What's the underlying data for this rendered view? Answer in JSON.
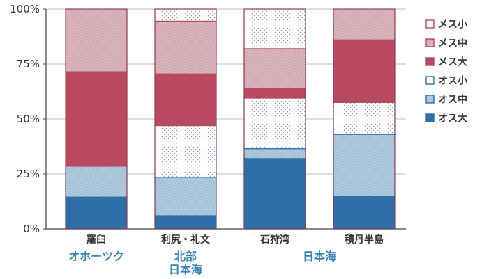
{
  "chart_data": {
    "type": "bar",
    "stacked": true,
    "categories": [
      "羅臼",
      "利尻・礼文",
      "石狩湾",
      "積丹半島"
    ],
    "category_groups": [
      {
        "label": "オホーツク",
        "categories": [
          0
        ]
      },
      {
        "label": "北部\n日本海",
        "categories": [
          1
        ]
      },
      {
        "label": "日本海",
        "categories": [
          2,
          3
        ]
      }
    ],
    "ylim": [
      0,
      100
    ],
    "yticks": [
      "0%",
      "25%",
      "50%",
      "75%",
      "100%"
    ],
    "ytick_values": [
      0,
      25,
      50,
      75,
      100
    ],
    "legend_position": "right",
    "series": [
      {
        "name": "オス大",
        "values": [
          14.5,
          6,
          32,
          15
        ],
        "color": "#2e6ea6",
        "pattern": "solid"
      },
      {
        "name": "オス中",
        "values": [
          14,
          17.5,
          4.5,
          28
        ],
        "color": "#a9c6dc",
        "pattern": "dots"
      },
      {
        "name": "オス小",
        "values": [
          0,
          23.5,
          23,
          14.5
        ],
        "color": "#ffffff",
        "pattern": "sparse-dots",
        "border": "#2e6ea6"
      },
      {
        "name": "メス大",
        "values": [
          43,
          23.5,
          4.5,
          28.5
        ],
        "color": "#b8495e",
        "pattern": "solid"
      },
      {
        "name": "メス中",
        "values": [
          28.5,
          24,
          18,
          14
        ],
        "color": "#d9b0b7",
        "pattern": "dots"
      },
      {
        "name": "メス小",
        "values": [
          0,
          5.5,
          18,
          0
        ],
        "color": "#ffffff",
        "pattern": "sparse-dots",
        "border": "#b8495e"
      }
    ]
  }
}
